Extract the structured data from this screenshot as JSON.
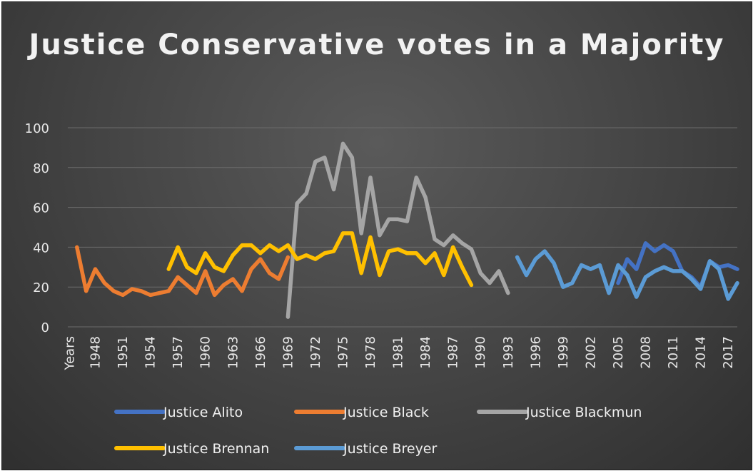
{
  "chart_data": {
    "type": "line",
    "title": "Justice Conservative votes in a Majority",
    "xlabel": "",
    "ylabel": "",
    "ylim": [
      0,
      100
    ],
    "yticks": [
      0,
      20,
      40,
      60,
      80,
      100
    ],
    "grid": true,
    "legend_position": "bottom",
    "x_tick_labels": [
      "Years",
      "1948",
      "1951",
      "1954",
      "1957",
      "1960",
      "1963",
      "1966",
      "1969",
      "1972",
      "1975",
      "1978",
      "1981",
      "1984",
      "1987",
      "1990",
      "1993",
      "1996",
      "1999",
      "2002",
      "2005",
      "2008",
      "2011",
      "2014",
      "2017"
    ],
    "series": [
      {
        "name": "Justice Alito",
        "color": "#4472C4",
        "points": [
          [
            2005,
            22
          ],
          [
            2006,
            34
          ],
          [
            2007,
            29
          ],
          [
            2008,
            42
          ],
          [
            2009,
            38
          ],
          [
            2010,
            41
          ],
          [
            2011,
            38
          ],
          [
            2012,
            28
          ],
          [
            2013,
            25
          ],
          [
            2014,
            20
          ],
          [
            2015,
            33
          ],
          [
            2016,
            30
          ],
          [
            2017,
            31
          ],
          [
            2018,
            29
          ]
        ]
      },
      {
        "name": "Justice Black",
        "color": "#ED7D31",
        "points": [
          [
            1946,
            40
          ],
          [
            1947,
            18
          ],
          [
            1948,
            29
          ],
          [
            1949,
            22
          ],
          [
            1950,
            18
          ],
          [
            1951,
            16
          ],
          [
            1952,
            19
          ],
          [
            1953,
            18
          ],
          [
            1954,
            16
          ],
          [
            1955,
            17
          ],
          [
            1956,
            18
          ],
          [
            1957,
            25
          ],
          [
            1958,
            21
          ],
          [
            1959,
            17
          ],
          [
            1960,
            28
          ],
          [
            1961,
            16
          ],
          [
            1962,
            21
          ],
          [
            1963,
            24
          ],
          [
            1964,
            18
          ],
          [
            1965,
            29
          ],
          [
            1966,
            34
          ],
          [
            1967,
            27
          ],
          [
            1968,
            24
          ],
          [
            1969,
            35
          ]
        ]
      },
      {
        "name": "Justice Blackmun",
        "color": "#A5A5A5",
        "points": [
          [
            1969,
            5
          ],
          [
            1970,
            62
          ],
          [
            1971,
            67
          ],
          [
            1972,
            83
          ],
          [
            1973,
            85
          ],
          [
            1974,
            69
          ],
          [
            1975,
            92
          ],
          [
            1976,
            85
          ],
          [
            1977,
            47
          ],
          [
            1978,
            75
          ],
          [
            1979,
            46
          ],
          [
            1980,
            54
          ],
          [
            1981,
            54
          ],
          [
            1982,
            53
          ],
          [
            1983,
            75
          ],
          [
            1984,
            65
          ],
          [
            1985,
            44
          ],
          [
            1986,
            41
          ],
          [
            1987,
            46
          ],
          [
            1988,
            42
          ],
          [
            1989,
            39
          ],
          [
            1990,
            27
          ],
          [
            1991,
            22
          ],
          [
            1992,
            28
          ],
          [
            1993,
            17
          ]
        ]
      },
      {
        "name": "Justice Brennan",
        "color": "#FFC000",
        "points": [
          [
            1956,
            29
          ],
          [
            1957,
            40
          ],
          [
            1958,
            30
          ],
          [
            1959,
            27
          ],
          [
            1960,
            37
          ],
          [
            1961,
            30
          ],
          [
            1962,
            28
          ],
          [
            1963,
            36
          ],
          [
            1964,
            41
          ],
          [
            1965,
            41
          ],
          [
            1966,
            37
          ],
          [
            1967,
            41
          ],
          [
            1968,
            38
          ],
          [
            1969,
            41
          ],
          [
            1970,
            34
          ],
          [
            1971,
            36
          ],
          [
            1972,
            34
          ],
          [
            1973,
            37
          ],
          [
            1974,
            38
          ],
          [
            1975,
            47
          ],
          [
            1976,
            47
          ],
          [
            1977,
            27
          ],
          [
            1978,
            45
          ],
          [
            1979,
            26
          ],
          [
            1980,
            38
          ],
          [
            1981,
            39
          ],
          [
            1982,
            37
          ],
          [
            1983,
            37
          ],
          [
            1984,
            32
          ],
          [
            1985,
            37
          ],
          [
            1986,
            26
          ],
          [
            1987,
            40
          ],
          [
            1988,
            30
          ],
          [
            1989,
            21
          ]
        ]
      },
      {
        "name": "Justice Breyer",
        "color": "#5B9BD5",
        "points": [
          [
            1994,
            35
          ],
          [
            1995,
            26
          ],
          [
            1996,
            34
          ],
          [
            1997,
            38
          ],
          [
            1998,
            32
          ],
          [
            1999,
            20
          ],
          [
            2000,
            22
          ],
          [
            2001,
            31
          ],
          [
            2002,
            29
          ],
          [
            2003,
            31
          ],
          [
            2004,
            17
          ],
          [
            2005,
            31
          ],
          [
            2006,
            26
          ],
          [
            2007,
            15
          ],
          [
            2008,
            25
          ],
          [
            2009,
            28
          ],
          [
            2010,
            30
          ],
          [
            2011,
            28
          ],
          [
            2012,
            28
          ],
          [
            2013,
            24
          ],
          [
            2014,
            19
          ],
          [
            2015,
            33
          ],
          [
            2016,
            29
          ],
          [
            2017,
            14
          ],
          [
            2018,
            22
          ]
        ]
      }
    ]
  }
}
